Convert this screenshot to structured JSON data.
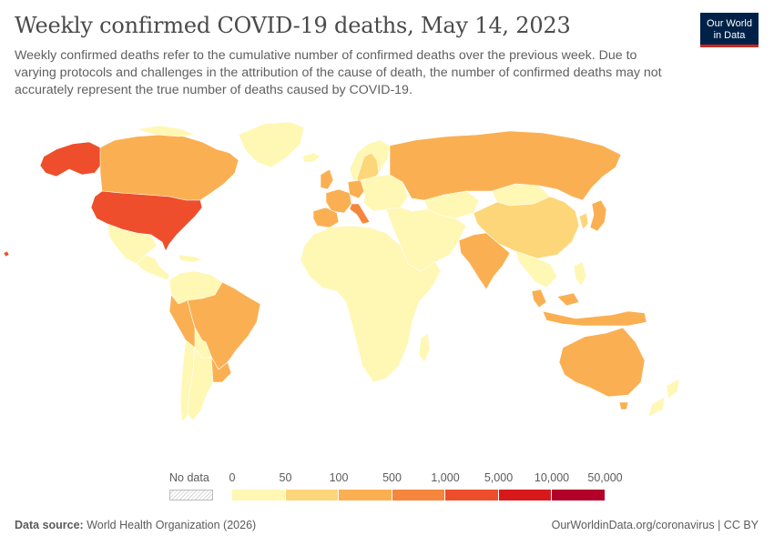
{
  "header": {
    "title": "Weekly confirmed COVID-19 deaths, May 14, 2023",
    "subtitle": "Weekly confirmed deaths refer to the cumulative number of confirmed deaths over the previous week. Due to varying protocols and challenges in the attribution of the cause of death, the number of confirmed deaths may not accurately represent the true number of deaths caused by COVID-19.",
    "logo_line1": "Our World",
    "logo_line2": "in Data"
  },
  "legend": {
    "no_data_label": "No data",
    "ticks": [
      "0",
      "50",
      "100",
      "500",
      "1,000",
      "5,000",
      "10,000",
      "50,000"
    ],
    "colors": [
      "#fff7b4",
      "#fdd67a",
      "#fab052",
      "#f6853e",
      "#ee4e2c",
      "#d7191c",
      "#b2002b"
    ]
  },
  "chart_data": {
    "type": "choropleth",
    "title": "Weekly confirmed COVID-19 deaths, May 14, 2023",
    "bins": [
      "0-50",
      "50-100",
      "100-500",
      "500-1,000",
      "1,000-5,000",
      "5,000-10,000",
      "10,000-50,000"
    ],
    "regions": [
      {
        "name": "United States",
        "bin": "1,000-5,000"
      },
      {
        "name": "Alaska (United States)",
        "bin": "1,000-5,000"
      },
      {
        "name": "Canada",
        "bin": "100-500"
      },
      {
        "name": "Greenland",
        "bin": "0-50"
      },
      {
        "name": "Mexico",
        "bin": "0-50"
      },
      {
        "name": "Central America",
        "bin": "0-50"
      },
      {
        "name": "Brazil",
        "bin": "100-500"
      },
      {
        "name": "Peru",
        "bin": "100-500"
      },
      {
        "name": "Colombia",
        "bin": "0-50"
      },
      {
        "name": "Venezuela",
        "bin": "0-50"
      },
      {
        "name": "Bolivia",
        "bin": "0-50"
      },
      {
        "name": "Chile",
        "bin": "0-50"
      },
      {
        "name": "Argentina",
        "bin": "0-50"
      },
      {
        "name": "Paraguay",
        "bin": "100-500"
      },
      {
        "name": "Uruguay",
        "bin": "100-500"
      },
      {
        "name": "Spain",
        "bin": "100-500"
      },
      {
        "name": "France",
        "bin": "100-500"
      },
      {
        "name": "Italy",
        "bin": "500-1,000"
      },
      {
        "name": "Germany",
        "bin": "100-500"
      },
      {
        "name": "United Kingdom",
        "bin": "100-500"
      },
      {
        "name": "Sweden",
        "bin": "50-100"
      },
      {
        "name": "Finland",
        "bin": "0-50"
      },
      {
        "name": "Norway",
        "bin": "0-50"
      },
      {
        "name": "Eastern Europe",
        "bin": "0-50"
      },
      {
        "name": "Russia",
        "bin": "100-500"
      },
      {
        "name": "Kazakhstan",
        "bin": "0-50"
      },
      {
        "name": "Mongolia",
        "bin": "0-50"
      },
      {
        "name": "China",
        "bin": "50-100"
      },
      {
        "name": "India",
        "bin": "100-500"
      },
      {
        "name": "Japan",
        "bin": "100-500"
      },
      {
        "name": "Korea",
        "bin": "50-100"
      },
      {
        "name": "Middle East",
        "bin": "0-50"
      },
      {
        "name": "Africa",
        "bin": "0-50"
      },
      {
        "name": "Southeast Asia",
        "bin": "0-50"
      },
      {
        "name": "Malaysia",
        "bin": "100-500"
      },
      {
        "name": "Indonesia",
        "bin": "100-500"
      },
      {
        "name": "Australia",
        "bin": "100-500"
      },
      {
        "name": "New Zealand",
        "bin": "0-50"
      },
      {
        "name": "Hawaii",
        "bin": "1,000-5,000"
      }
    ]
  },
  "footer": {
    "source_label": "Data source:",
    "source_value": "World Health Organization (2026)",
    "url_license": "OurWorldinData.org/coronavirus | CC BY"
  }
}
